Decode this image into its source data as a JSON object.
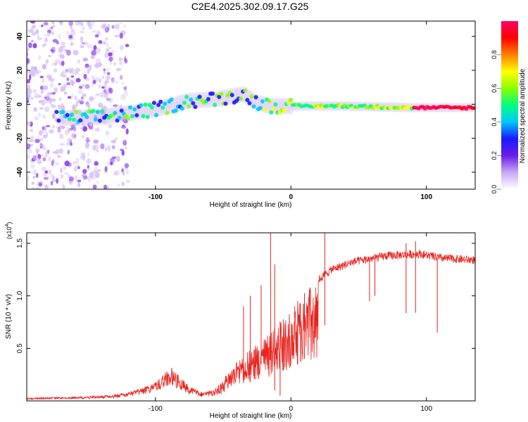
{
  "title": "C2E4.2025.302.09.17.G25",
  "colors": {
    "snr_line": "#e8231e",
    "blob_light": "#d7c2f5",
    "blob_purple": "#8a3cf0",
    "axis": "#000000"
  },
  "chart_data": [
    {
      "type": "heatmap",
      "name": "spectrogram",
      "title": "C2E4.2025.302.09.17.G25",
      "xlabel": "Height of straight line (km)",
      "ylabel": "Frequency (Hz)",
      "xlim": [
        -195,
        136
      ],
      "ylim": [
        -50,
        49
      ],
      "xticks": [
        {
          "v": -100,
          "label": "-100"
        },
        {
          "v": 0,
          "label": "0"
        },
        {
          "v": 100,
          "label": "100"
        }
      ],
      "yticks": [
        {
          "v": -40,
          "label": "-40"
        },
        {
          "v": -20,
          "label": "-20"
        },
        {
          "v": 0,
          "label": "0"
        },
        {
          "v": 20,
          "label": "20"
        },
        {
          "v": 40,
          "label": "40"
        }
      ],
      "ridge": [
        {
          "x": -175,
          "f": -8
        },
        {
          "x": -150,
          "f": -8
        },
        {
          "x": -125,
          "f": -6
        },
        {
          "x": -100,
          "f": -3
        },
        {
          "x": -75,
          "f": 2
        },
        {
          "x": -55,
          "f": 3
        },
        {
          "x": -35,
          "f": 6
        },
        {
          "x": -25,
          "f": 1
        },
        {
          "x": -15,
          "f": -1
        },
        {
          "x": 0,
          "f": -1
        },
        {
          "x": 40,
          "f": -1
        },
        {
          "x": 90,
          "f": -2
        },
        {
          "x": 136,
          "f": -2
        }
      ],
      "colorbar": {
        "label": "Normalized spectral amplitude",
        "range": [
          0,
          1
        ],
        "ticks": [
          {
            "v": 0.0,
            "label": "0.0"
          },
          {
            "v": 0.2,
            "label": "0.2"
          },
          {
            "v": 0.4,
            "label": "0.4"
          },
          {
            "v": 0.6,
            "label": "0.6"
          },
          {
            "v": 0.8,
            "label": "0.8"
          }
        ],
        "stops": [
          "#ffffff",
          "#c9a8f7",
          "#6a1de8",
          "#1a1aff",
          "#00c8ff",
          "#00ff80",
          "#8cff00",
          "#ffff00",
          "#ff8000",
          "#ff0000",
          "#ff0066"
        ]
      }
    },
    {
      "type": "line",
      "name": "snr",
      "xlabel": "Height of straight line (km)",
      "ylabel": "SNR (10 * v/v)",
      "y_multiplier": "(x10",
      "y_multiplier_exp": "4",
      "y_multiplier_close": ")",
      "xlim": [
        -195,
        136
      ],
      "ylim": [
        0,
        1.6
      ],
      "xticks": [
        {
          "v": -100,
          "label": "-100"
        },
        {
          "v": 0,
          "label": "0"
        },
        {
          "v": 100,
          "label": "100"
        }
      ],
      "yticks": [
        {
          "v": 0.5,
          "label": "0.5"
        },
        {
          "v": 1.0,
          "label": "1.0"
        },
        {
          "v": 1.5,
          "label": "1.5"
        }
      ],
      "envelope": [
        {
          "x": -195,
          "y": 0.03
        },
        {
          "x": -160,
          "y": 0.04
        },
        {
          "x": -130,
          "y": 0.06
        },
        {
          "x": -115,
          "y": 0.1
        },
        {
          "x": -100,
          "y": 0.18
        },
        {
          "x": -92,
          "y": 0.28
        },
        {
          "x": -88,
          "y": 0.32
        },
        {
          "x": -84,
          "y": 0.26
        },
        {
          "x": -75,
          "y": 0.14
        },
        {
          "x": -65,
          "y": 0.08
        },
        {
          "x": -55,
          "y": 0.12
        },
        {
          "x": -45,
          "y": 0.3
        },
        {
          "x": -35,
          "y": 0.45
        },
        {
          "x": -25,
          "y": 0.55
        },
        {
          "x": -15,
          "y": 0.65
        },
        {
          "x": -5,
          "y": 0.8
        },
        {
          "x": 5,
          "y": 0.95
        },
        {
          "x": 15,
          "y": 1.1
        },
        {
          "x": 30,
          "y": 1.25
        },
        {
          "x": 45,
          "y": 1.32
        },
        {
          "x": 70,
          "y": 1.38
        },
        {
          "x": 95,
          "y": 1.4
        },
        {
          "x": 110,
          "y": 1.36
        },
        {
          "x": 136,
          "y": 1.34
        }
      ],
      "spikes": [
        {
          "x": -35,
          "y": 0.9
        },
        {
          "x": -30,
          "y": 1.0
        },
        {
          "x": -22,
          "y": 1.1
        },
        {
          "x": -15,
          "y": 1.6
        },
        {
          "x": -12,
          "y": 1.3
        },
        {
          "x": 25,
          "y": 1.6
        },
        {
          "x": 85,
          "y": 1.5
        },
        {
          "x": 92,
          "y": 1.52
        }
      ],
      "dips": [
        {
          "x": -12,
          "y": 0.1
        },
        {
          "x": -8,
          "y": 0.05
        },
        {
          "x": 5,
          "y": 0.35
        },
        {
          "x": 10,
          "y": 0.4
        },
        {
          "x": 58,
          "y": 0.95
        },
        {
          "x": 62,
          "y": 1.0
        },
        {
          "x": 108,
          "y": 0.65
        }
      ]
    }
  ]
}
